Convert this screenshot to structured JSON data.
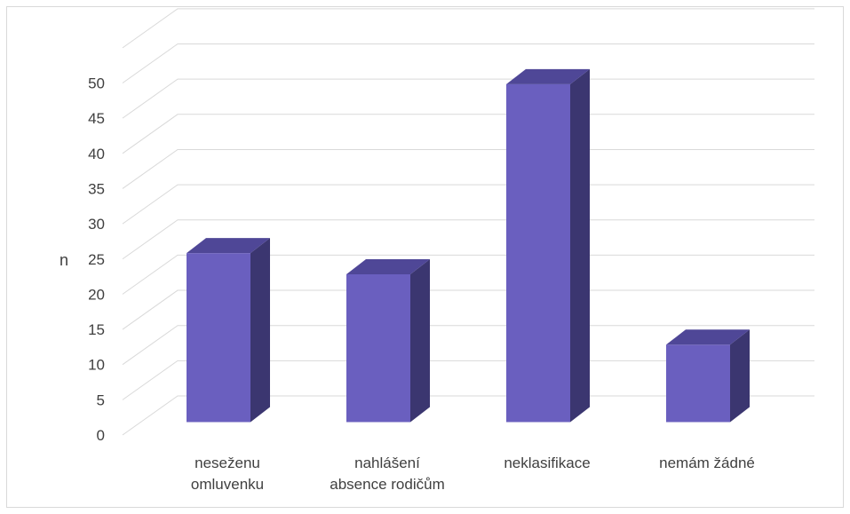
{
  "chart_data": {
    "type": "bar",
    "style": "3d-column",
    "categories": [
      [
        "neseženu",
        "omluvenku"
      ],
      [
        "nahlášení",
        "absence rodičům"
      ],
      [
        "neklasifikace"
      ],
      [
        "nemám žádné"
      ]
    ],
    "values": [
      24,
      21,
      48,
      11
    ],
    "ylabel": "n",
    "ylim": [
      0,
      50
    ],
    "yticks": [
      0,
      5,
      10,
      15,
      20,
      25,
      30,
      35,
      40,
      45,
      50
    ],
    "grid": true,
    "legend": "none",
    "colors": {
      "front": "#6a5fbf",
      "side": "#3b3670",
      "top": "#4f4797",
      "grid": "#d9d9d9",
      "text": "#404040"
    }
  }
}
